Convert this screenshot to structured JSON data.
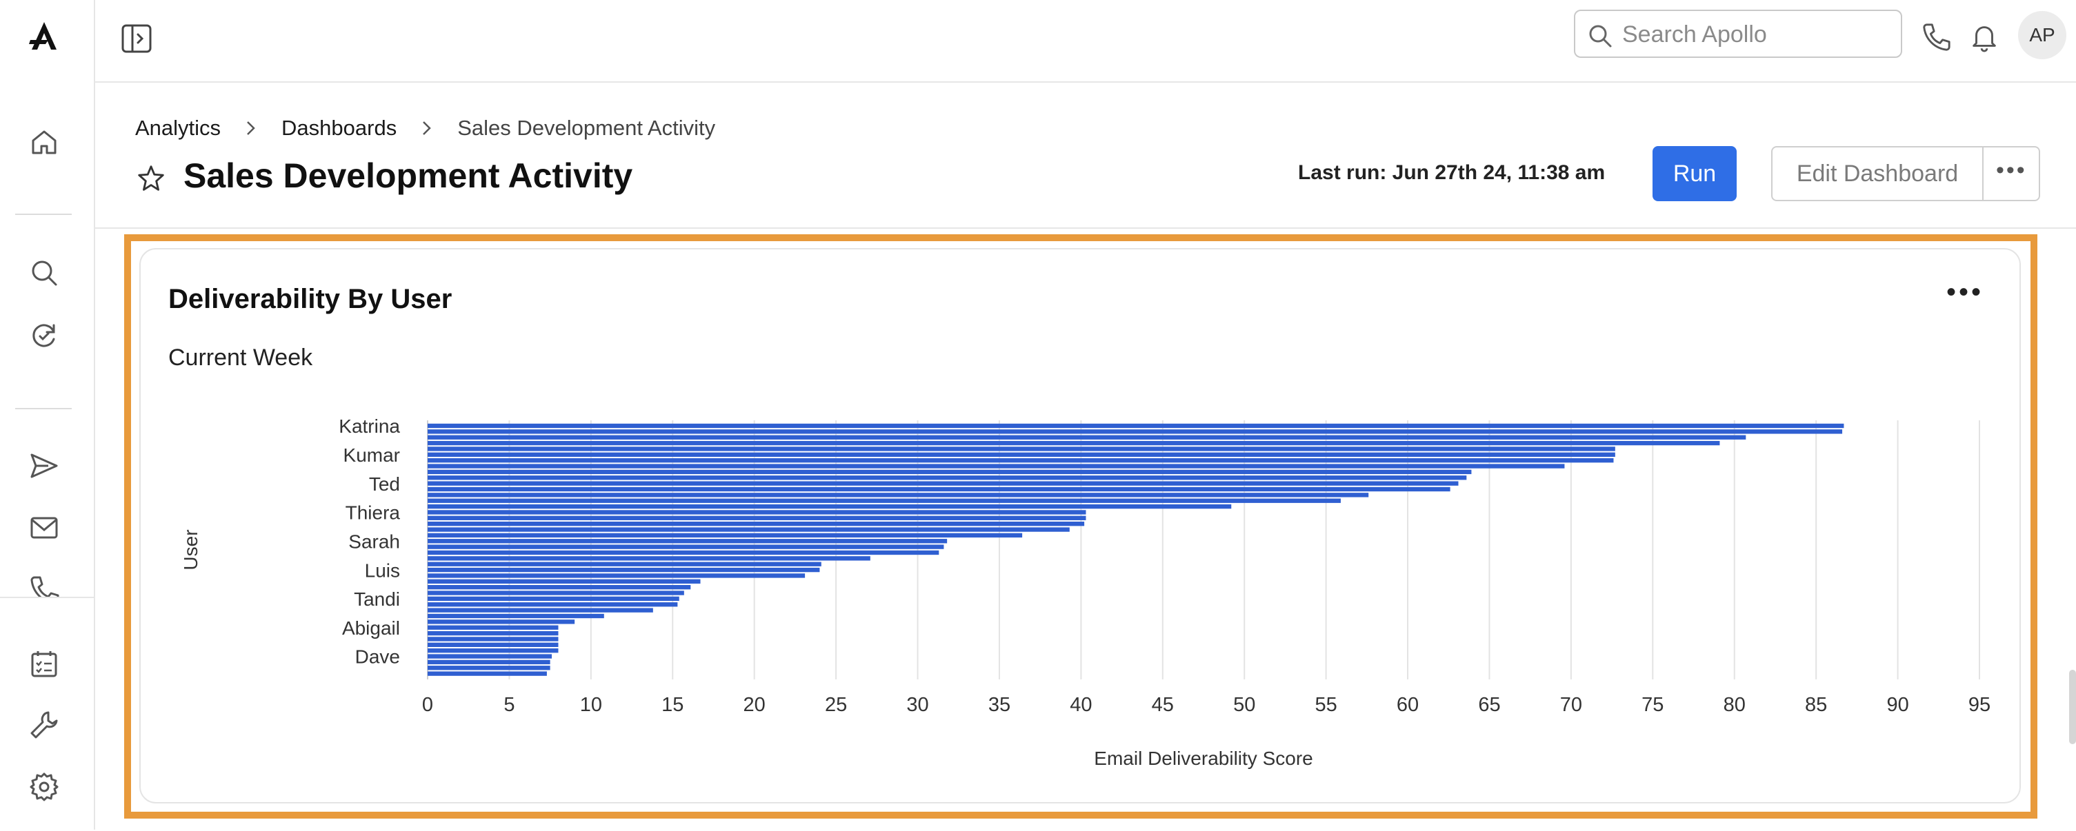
{
  "topbar": {
    "search_placeholder": "Search Apollo",
    "avatar_initials": "AP"
  },
  "breadcrumb": [
    {
      "label": "Analytics"
    },
    {
      "label": "Dashboards"
    },
    {
      "label": "Sales Development Activity"
    }
  ],
  "page": {
    "title": "Sales Development Activity",
    "last_run": "Last run: Jun 27th 24, 11:38 am",
    "run_label": "Run",
    "edit_label": "Edit Dashboard",
    "more_label": "•••"
  },
  "card": {
    "title": "Deliverability By User",
    "subtitle": "Current Week",
    "more_label": "•••"
  },
  "colors": {
    "accent": "#2f6ee6",
    "bar": "#2f5fd1",
    "highlight": "#e89a3c"
  },
  "chart_data": {
    "type": "bar",
    "orientation": "horizontal",
    "xlabel": "Email Deliverability Score",
    "ylabel": "User",
    "xlim": [
      0,
      95
    ],
    "xticks": [
      0,
      5,
      10,
      15,
      20,
      25,
      30,
      35,
      40,
      45,
      50,
      55,
      60,
      65,
      70,
      75,
      80,
      85,
      90,
      95
    ],
    "grid": "vertical",
    "category_labels": [
      "Katrina",
      "Kumar",
      "Ted",
      "Thiera",
      "Sarah",
      "Luis",
      "Tandi",
      "Abigail",
      "Dave"
    ],
    "label_rows": [
      0,
      5,
      10,
      15,
      20,
      25,
      30,
      35,
      40
    ],
    "values": [
      86.7,
      86.6,
      80.7,
      79.1,
      72.7,
      72.7,
      72.6,
      69.6,
      63.9,
      63.6,
      63.1,
      62.6,
      57.6,
      55.9,
      49.2,
      40.3,
      40.3,
      40.2,
      39.3,
      36.4,
      31.8,
      31.6,
      31.3,
      27.1,
      24.1,
      24.0,
      23.1,
      16.7,
      16.1,
      15.7,
      15.4,
      15.3,
      13.8,
      10.8,
      9.0,
      8.0,
      8.0,
      8.0,
      8.0,
      8.0,
      7.6,
      7.5,
      7.5,
      7.3
    ]
  }
}
